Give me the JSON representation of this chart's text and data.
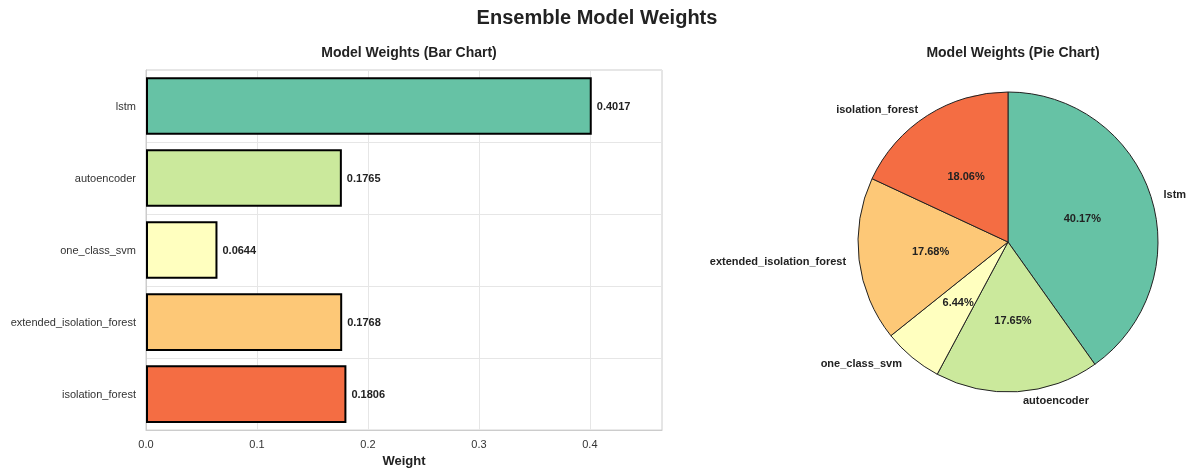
{
  "chart_data": [
    {
      "type": "bar",
      "orientation": "horizontal",
      "title": "Model Weights (Bar Chart)",
      "annotations": [
        "Ensemble Model Weights"
      ],
      "xlabel": "Weight",
      "categories": [
        "lstm",
        "autoencoder",
        "one_class_svm",
        "extended_isolation_forest",
        "isolation_forest"
      ],
      "values": [
        0.4017,
        0.1765,
        0.0644,
        0.1768,
        0.1806
      ],
      "colors": [
        "#66c2a5",
        "#cbe99c",
        "#ffffbf",
        "#fdc877",
        "#f46d43"
      ],
      "xlim": [
        0,
        0.465
      ],
      "xticks": [
        {
          "value": 0,
          "label": "0.0"
        },
        {
          "value": 0.1,
          "label": "0.1"
        },
        {
          "value": 0.2,
          "label": "0.2"
        },
        {
          "value": 0.3,
          "label": "0.3"
        },
        {
          "value": 0.4,
          "label": "0.4"
        }
      ],
      "grid": true,
      "data_labels": true
    },
    {
      "type": "pie",
      "title": "Model Weights (Pie Chart)",
      "categories": [
        "lstm",
        "autoencoder",
        "one_class_svm",
        "extended_isolation_forest",
        "isolation_forest"
      ],
      "values": [
        40.17,
        17.65,
        6.44,
        17.68,
        18.06
      ],
      "value_labels": [
        "40.17%",
        "17.65%",
        "6.44%",
        "17.68%",
        "18.06%"
      ],
      "colors": [
        "#66c2a5",
        "#cbe99c",
        "#ffffbf",
        "#fdc877",
        "#f46d43"
      ]
    }
  ]
}
